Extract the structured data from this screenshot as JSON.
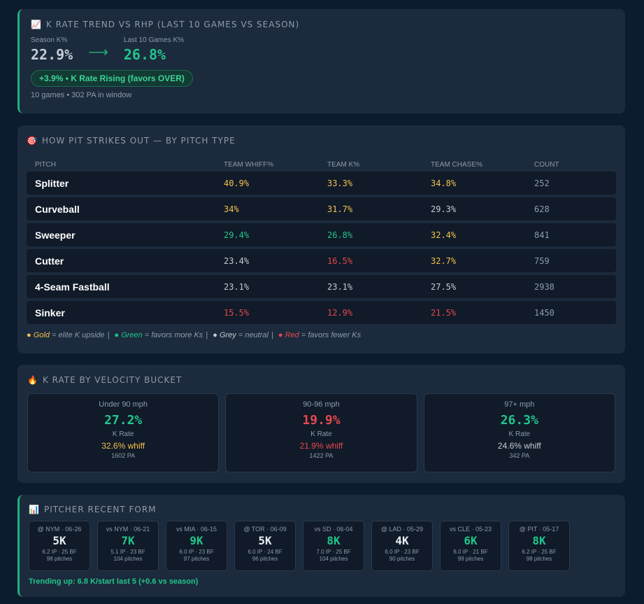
{
  "rate_trend": {
    "icon": "chart-increasing-icon",
    "title": "K RATE TREND VS RHP (LAST 10 GAMES VS SEASON)",
    "season_label": "Season K%",
    "season_value": "22.9%",
    "arrow": "⟶",
    "last10_label": "Last 10 Games K%",
    "last10_value": "26.8%",
    "badge": "+3.9% • K Rate Rising (favors OVER)",
    "sub": "10 games • 302 PA in window"
  },
  "pitch_type": {
    "icon": "target-icon",
    "title": "HOW PIT STRIKES OUT — BY PITCH TYPE",
    "columns": [
      "PITCH",
      "TEAM WHIFF%",
      "TEAM K%",
      "TEAM CHASE%",
      "COUNT"
    ],
    "rows": [
      {
        "name": "Splitter",
        "whiff": "40.9%",
        "whiff_c": "gold",
        "k": "33.3%",
        "k_c": "gold",
        "chase": "34.8%",
        "chase_c": "gold",
        "count": "252"
      },
      {
        "name": "Curveball",
        "whiff": "34%",
        "whiff_c": "gold",
        "k": "31.7%",
        "k_c": "gold",
        "chase": "29.3%",
        "chase_c": "grey",
        "count": "628"
      },
      {
        "name": "Sweeper",
        "whiff": "29.4%",
        "whiff_c": "green",
        "k": "26.8%",
        "k_c": "green",
        "chase": "32.4%",
        "chase_c": "gold",
        "count": "841"
      },
      {
        "name": "Cutter",
        "whiff": "23.4%",
        "whiff_c": "grey",
        "k": "16.5%",
        "k_c": "red",
        "chase": "32.7%",
        "chase_c": "gold",
        "count": "759"
      },
      {
        "name": "4-Seam Fastball",
        "whiff": "23.1%",
        "whiff_c": "grey",
        "k": "23.1%",
        "k_c": "grey",
        "chase": "27.5%",
        "chase_c": "grey",
        "count": "2938"
      },
      {
        "name": "Sinker",
        "whiff": "15.5%",
        "whiff_c": "red",
        "k": "12.9%",
        "k_c": "red",
        "chase": "21.5%",
        "chase_c": "red",
        "count": "1450"
      }
    ],
    "legend": {
      "gold_word": "Gold",
      "gold_text": "= elite K upside",
      "green_word": "Green",
      "green_text": "= favors more Ks",
      "grey_word": "Grey",
      "grey_text": "= neutral",
      "red_word": "Red",
      "red_text": "= favors fewer Ks"
    }
  },
  "velocity": {
    "icon": "fire-icon",
    "title": "K RATE BY VELOCITY BUCKET",
    "buckets": [
      {
        "label": "Under 90 mph",
        "k_rate": "27.2%",
        "k_c": "green",
        "k_label": "K Rate",
        "whiff": "32.6% whiff",
        "whiff_c": "gold",
        "pa": "1602 PA"
      },
      {
        "label": "90-96 mph",
        "k_rate": "19.9%",
        "k_c": "red",
        "k_label": "K Rate",
        "whiff": "21.9% whiff",
        "whiff_c": "red",
        "pa": "1422 PA"
      },
      {
        "label": "97+ mph",
        "k_rate": "26.3%",
        "k_c": "green",
        "k_label": "K Rate",
        "whiff": "24.6% whiff",
        "whiff_c": "grey",
        "pa": "342 PA"
      }
    ]
  },
  "recent_form": {
    "icon": "bar-chart-icon",
    "title": "PITCHER RECENT FORM",
    "games": [
      {
        "opp": "@ NYM · 06-26",
        "k": "5K",
        "k_c": "white",
        "line": "6.2 IP · 25 BF",
        "pitches": "98 pitches"
      },
      {
        "opp": "vs NYM · 06-21",
        "k": "7K",
        "k_c": "green",
        "line": "5.1 IP · 23 BF",
        "pitches": "104 pitches"
      },
      {
        "opp": "vs MIA · 06-15",
        "k": "9K",
        "k_c": "green",
        "line": "6.0 IP · 23 BF",
        "pitches": "97 pitches"
      },
      {
        "opp": "@ TOR · 06-09",
        "k": "5K",
        "k_c": "white",
        "line": "6.0 IP · 24 BF",
        "pitches": "96 pitches"
      },
      {
        "opp": "vs SD · 06-04",
        "k": "8K",
        "k_c": "green",
        "line": "7.0 IP · 25 BF",
        "pitches": "104 pitches"
      },
      {
        "opp": "@ LAD · 05-29",
        "k": "4K",
        "k_c": "white",
        "line": "6.0 IP · 23 BF",
        "pitches": "90 pitches"
      },
      {
        "opp": "vs CLE · 05-23",
        "k": "6K",
        "k_c": "green",
        "line": "6.0 IP · 21 BF",
        "pitches": "99 pitches"
      },
      {
        "opp": "@ PIT · 05-17",
        "k": "8K",
        "k_c": "green",
        "line": "6.2 IP · 25 BF",
        "pitches": "98 pitches"
      }
    ],
    "trend": "Trending up: 6.8 K/start last 5 (+0.6 vs season)"
  },
  "colors": {
    "accent": "#22b07d",
    "gold": "#f2c14e",
    "green": "#22c58b",
    "red": "#e5484d",
    "grey": "#c3ccd6"
  }
}
